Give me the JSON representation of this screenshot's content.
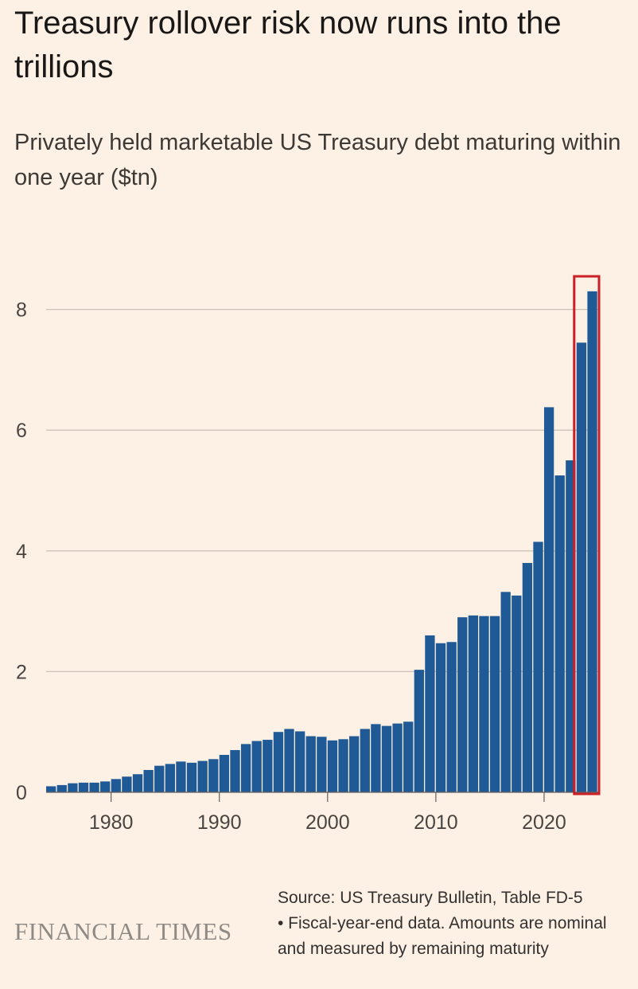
{
  "header": {
    "title": "Treasury rollover risk now runs into the trillions",
    "subtitle": "Privately held marketable US Treasury debt maturing within one year ($tn)"
  },
  "footer": {
    "logo": "FINANCIAL TIMES",
    "source": "Source: US Treasury Bulletin, Table FD-5",
    "note": "• Fiscal-year-end data. Amounts are nominal and measured by remaining maturity"
  },
  "colors": {
    "background": "#fdf1e6",
    "bar": "#1f5a96",
    "gridline": "#ccc2b8",
    "highlight": "#cc1f26",
    "text": "#33302e"
  },
  "chart_data": {
    "type": "bar",
    "title": "Privately held marketable US Treasury debt maturing within one year ($tn)",
    "xlabel": "",
    "ylabel": "",
    "ylim": [
      0,
      8.5
    ],
    "yticks": [
      0,
      2,
      4,
      6,
      8
    ],
    "xticks": [
      1980,
      1990,
      2000,
      2010,
      2020
    ],
    "grid": true,
    "highlight_category": 2024,
    "categories": [
      1974,
      1975,
      1976,
      1977,
      1978,
      1979,
      1980,
      1981,
      1982,
      1983,
      1984,
      1985,
      1986,
      1987,
      1988,
      1989,
      1990,
      1991,
      1992,
      1993,
      1994,
      1995,
      1996,
      1997,
      1998,
      1999,
      2000,
      2001,
      2002,
      2003,
      2004,
      2005,
      2006,
      2007,
      2008,
      2009,
      2010,
      2011,
      2012,
      2013,
      2014,
      2015,
      2016,
      2017,
      2018,
      2019,
      2020,
      2021,
      2022,
      2023,
      2024
    ],
    "values": [
      0.1,
      0.12,
      0.15,
      0.16,
      0.16,
      0.18,
      0.22,
      0.26,
      0.3,
      0.37,
      0.44,
      0.47,
      0.51,
      0.49,
      0.52,
      0.55,
      0.62,
      0.7,
      0.8,
      0.85,
      0.87,
      1.0,
      1.05,
      1.01,
      0.93,
      0.92,
      0.86,
      0.88,
      0.93,
      1.05,
      1.13,
      1.1,
      1.14,
      1.17,
      2.03,
      2.6,
      2.47,
      2.49,
      2.9,
      2.93,
      2.92,
      2.92,
      3.32,
      3.26,
      3.8,
      4.15,
      6.38,
      5.25,
      5.5,
      7.45,
      8.3
    ]
  }
}
